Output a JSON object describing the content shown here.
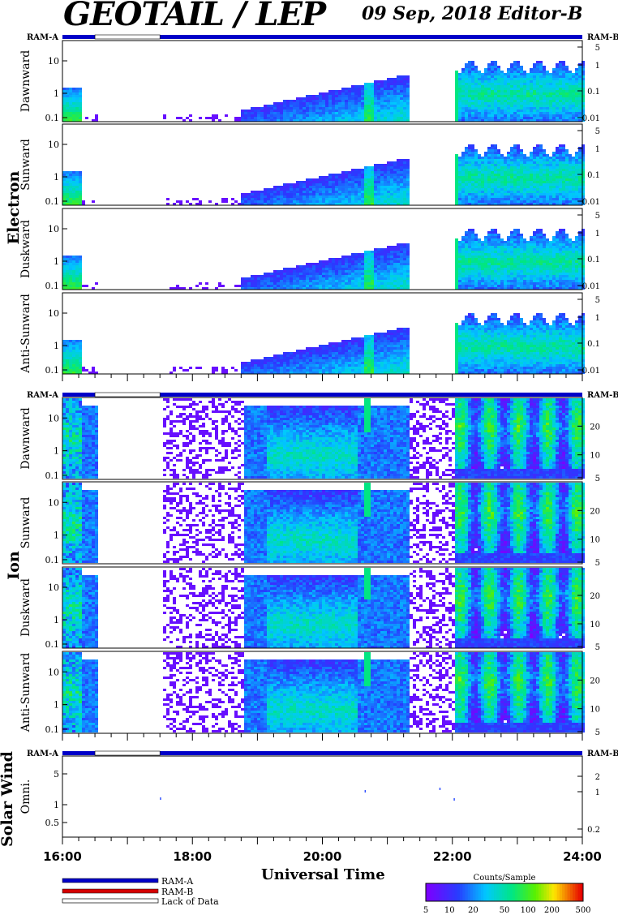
{
  "header": {
    "title": "GEOTAIL / LEP",
    "subtitle": "09 Sep, 2018   Editor-B"
  },
  "groups": {
    "electron": "Electron",
    "ion": "Ion",
    "solar_wind": "Solar Wind"
  },
  "ram": {
    "a": "RAM-A",
    "b": "RAM-B"
  },
  "x_axis": {
    "label": "Universal Time",
    "ticks": [
      "16:00",
      "18:00",
      "20:00",
      "22:00",
      "24:00"
    ]
  },
  "legend": {
    "ram_a": "RAM-A",
    "ram_b": "RAM-B",
    "lack": "Lack of Data"
  },
  "colorbar": {
    "title": "Counts/Sample",
    "ticks": [
      "5",
      "10",
      "20",
      "50",
      "100",
      "200",
      "500"
    ]
  },
  "colors": {
    "ram_bar": "#0000c8",
    "ram_b_legend": "#d40000",
    "lack_of_data": "#ffffff"
  },
  "chart_data": {
    "type": "heatmap",
    "x_range_hours": [
      16,
      24
    ],
    "lack_of_data_hours": [
      16.5,
      17.5
    ],
    "panels": [
      {
        "group": "Electron",
        "label": "Dawnward",
        "left_ticks": [
          "10",
          "1",
          "0.1"
        ],
        "right_ticks": [
          "5",
          "1",
          "0.1",
          "0.01"
        ]
      },
      {
        "group": "Electron",
        "label": "Sunward",
        "left_ticks": [
          "10",
          "1",
          "0.1"
        ],
        "right_ticks": [
          "5",
          "1",
          "0.1",
          "0.01"
        ]
      },
      {
        "group": "Electron",
        "label": "Duskward",
        "left_ticks": [
          "10",
          "1",
          "0.1"
        ],
        "right_ticks": [
          "5",
          "1",
          "0.1",
          "0.01"
        ]
      },
      {
        "group": "Electron",
        "label": "Anti-Sunward",
        "left_ticks": [
          "10",
          "1",
          "0.1"
        ],
        "right_ticks": [
          "5",
          "1",
          "0.1",
          "0.01"
        ]
      },
      {
        "group": "Ion",
        "label": "Dawnward",
        "left_ticks": [
          "10",
          "1",
          "0.1"
        ],
        "right_ticks": [
          "20",
          "10",
          "5"
        ]
      },
      {
        "group": "Ion",
        "label": "Sunward",
        "left_ticks": [
          "10",
          "1",
          "0.1"
        ],
        "right_ticks": [
          "20",
          "10",
          "5"
        ]
      },
      {
        "group": "Ion",
        "label": "Duskward",
        "left_ticks": [
          "10",
          "1",
          "0.1"
        ],
        "right_ticks": [
          "20",
          "10",
          "5"
        ]
      },
      {
        "group": "Ion",
        "label": "Anti-Sunward",
        "left_ticks": [
          "10",
          "1",
          "0.1"
        ],
        "right_ticks": [
          "20",
          "10",
          "5"
        ]
      },
      {
        "group": "Solar Wind",
        "label": "Omni.",
        "left_ticks": [
          "5",
          "1",
          "0.5"
        ],
        "right_ticks": [
          "2",
          "1",
          "0.2"
        ]
      }
    ]
  }
}
